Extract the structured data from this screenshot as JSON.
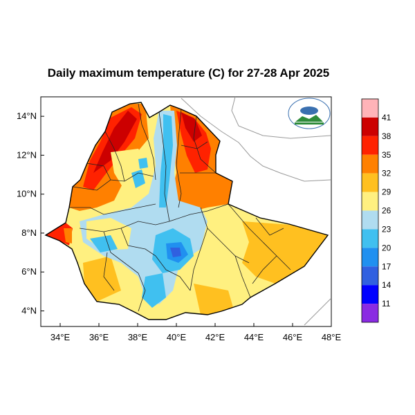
{
  "title": "Daily maximum temperature (C) for 27-28 Apr 2025",
  "lat_ticks": [
    {
      "label": "14°N",
      "value": 14
    },
    {
      "label": "12°N",
      "value": 12
    },
    {
      "label": "10°N",
      "value": 10
    },
    {
      "label": "8°N",
      "value": 8
    },
    {
      "label": "6°N",
      "value": 6
    },
    {
      "label": "4°N",
      "value": 4
    }
  ],
  "lon_ticks": [
    {
      "label": "34°E",
      "value": 34
    },
    {
      "label": "36°E",
      "value": 36
    },
    {
      "label": "38°E",
      "value": 38
    },
    {
      "label": "40°E",
      "value": 40
    },
    {
      "label": "42°E",
      "value": 42
    },
    {
      "label": "44°E",
      "value": 44
    },
    {
      "label": "46°E",
      "value": 46
    },
    {
      "label": "48°E",
      "value": 48
    }
  ],
  "colorbar": {
    "labels": [
      "41",
      "38",
      "35",
      "32",
      "29",
      "26",
      "23",
      "20",
      "17",
      "14",
      "11"
    ],
    "colors": [
      "#FFB3B8",
      "#CC0000",
      "#FF2200",
      "#FF8000",
      "#FFC020",
      "#FFF080",
      "#B0DCF0",
      "#40C0F0",
      "#2090F0",
      "#3060E0",
      "#0000FF",
      "#8A2BE2"
    ]
  },
  "map_extent": {
    "lon_min": 33,
    "lon_max": 48,
    "lat_min": 3.2,
    "lat_max": 15
  },
  "logo": {
    "name": "Ethiopian Meteorology Institute logo"
  }
}
